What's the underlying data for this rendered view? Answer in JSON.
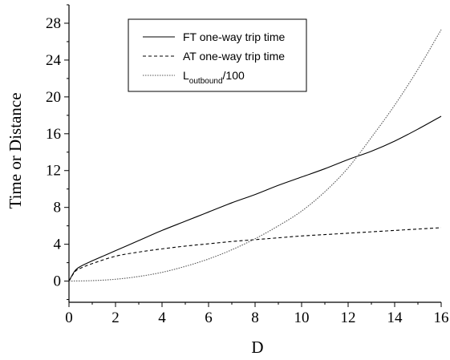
{
  "chart_data": {
    "type": "line",
    "xlabel": "D",
    "ylabel": "Time or Distance",
    "xlim": [
      0,
      16
    ],
    "ylim": [
      -2.3,
      30
    ],
    "x_ticks": [
      0,
      2,
      4,
      6,
      8,
      10,
      12,
      14,
      16
    ],
    "y_ticks": [
      0,
      4,
      8,
      12,
      16,
      20,
      24,
      28
    ],
    "grid": false,
    "legend_position": "top-center",
    "series": [
      {
        "name": "FT one-way trip time",
        "legend_main": "FT one-way trip time",
        "legend_sub": "",
        "legend_tail": "",
        "dash": "solid",
        "color": "#000000",
        "x": [
          0,
          0.25,
          0.5,
          1,
          2,
          3,
          4,
          5,
          6,
          7,
          8,
          9,
          10,
          11,
          12,
          13,
          14,
          15,
          16
        ],
        "y": [
          0,
          1.1,
          1.6,
          2.2,
          3.3,
          4.4,
          5.5,
          6.5,
          7.5,
          8.5,
          9.4,
          10.4,
          11.3,
          12.2,
          13.2,
          14.1,
          15.2,
          16.5,
          17.9
        ]
      },
      {
        "name": "AT one-way trip time",
        "legend_main": "AT one-way trip time",
        "legend_sub": "",
        "legend_tail": "",
        "dash": "dashed",
        "color": "#000000",
        "x": [
          0,
          0.25,
          0.5,
          1,
          2,
          3,
          4,
          5,
          6,
          7,
          8,
          9,
          10,
          11,
          12,
          13,
          14,
          15,
          16
        ],
        "y": [
          0,
          1.0,
          1.4,
          1.9,
          2.7,
          3.15,
          3.5,
          3.8,
          4.05,
          4.3,
          4.5,
          4.7,
          4.9,
          5.05,
          5.2,
          5.35,
          5.5,
          5.65,
          5.8
        ]
      },
      {
        "name": "Loutbound/100",
        "legend_main": "L",
        "legend_sub": "outbound",
        "legend_tail": "/100",
        "dash": "dotted",
        "color": "#555555",
        "x": [
          0,
          1,
          2,
          3,
          4,
          5,
          6,
          7,
          8,
          9,
          10,
          11,
          12,
          13,
          14,
          15,
          16
        ],
        "y": [
          0,
          0.05,
          0.2,
          0.5,
          0.95,
          1.6,
          2.4,
          3.4,
          4.6,
          6.0,
          7.6,
          9.7,
          12.3,
          15.6,
          19.1,
          23.0,
          27.3
        ]
      }
    ]
  }
}
